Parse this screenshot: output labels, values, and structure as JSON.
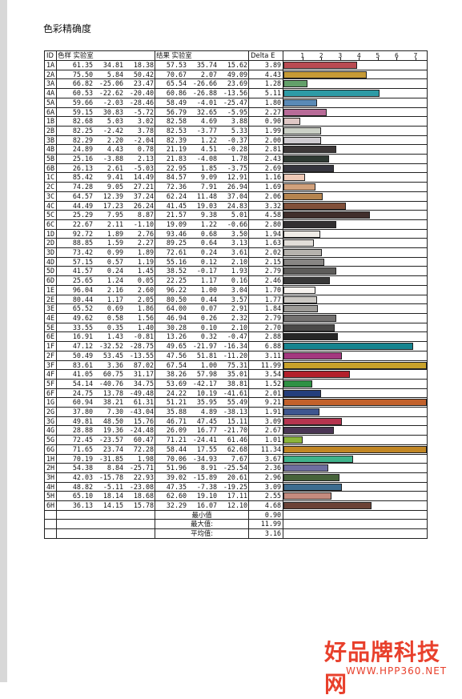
{
  "page_title": "色彩精确度",
  "headers": {
    "id": "ID",
    "sample": "色样 实验室",
    "result": "结果 实验室",
    "delta": "Delta E"
  },
  "scale": [
    "1",
    "2",
    "3",
    "4",
    "5",
    "6",
    "7"
  ],
  "scale_max": 7.6,
  "rows": [
    {
      "id": "1A",
      "s": [
        "61.35",
        "34.81",
        "18.38"
      ],
      "r": [
        "57.53",
        "35.74",
        "15.62"
      ],
      "d": "3.89",
      "de": 3.89,
      "color": "#b94b52"
    },
    {
      "id": "2A",
      "s": [
        "75.50",
        "5.84",
        "50.42"
      ],
      "r": [
        "70.67",
        "2.07",
        "49.09"
      ],
      "d": "4.43",
      "de": 4.43,
      "color": "#c69a35"
    },
    {
      "id": "3A",
      "s": [
        "66.82",
        "-25.06",
        "23.47"
      ],
      "r": [
        "65.54",
        "-26.66",
        "23.69"
      ],
      "d": "1.28",
      "de": 1.28,
      "color": "#63a06a"
    },
    {
      "id": "4A",
      "s": [
        "60.53",
        "-22.62",
        "-20.40"
      ],
      "r": [
        "60.86",
        "-26.88",
        "-13.56"
      ],
      "d": "5.11",
      "de": 5.11,
      "color": "#2d9ba6"
    },
    {
      "id": "5A",
      "s": [
        "59.66",
        "-2.03",
        "-28.46"
      ],
      "r": [
        "58.49",
        "-4.01",
        "-25.47"
      ],
      "d": "1.80",
      "de": 1.8,
      "color": "#5a8ab6"
    },
    {
      "id": "6A",
      "s": [
        "59.15",
        "30.83",
        "-5.72"
      ],
      "r": [
        "56.79",
        "32.65",
        "-5.95"
      ],
      "d": "2.27",
      "de": 2.27,
      "color": "#b86b98"
    },
    {
      "id": "1B",
      "s": [
        "82.68",
        "5.03",
        "3.02"
      ],
      "r": [
        "82.58",
        "4.69",
        "3.88"
      ],
      "d": "0.90",
      "de": 0.9,
      "color": "#dfc7c5"
    },
    {
      "id": "2B",
      "s": [
        "82.25",
        "-2.42",
        "3.78"
      ],
      "r": [
        "82.53",
        "-3.77",
        "5.33"
      ],
      "d": "1.99",
      "de": 1.99,
      "color": "#cbd0c6"
    },
    {
      "id": "3B",
      "s": [
        "82.29",
        "2.20",
        "-2.04"
      ],
      "r": [
        "82.39",
        "1.22",
        "-0.37"
      ],
      "d": "2.00",
      "de": 2.0,
      "color": "#cfcbd0"
    },
    {
      "id": "4B",
      "s": [
        "24.89",
        "4.43",
        "0.78"
      ],
      "r": [
        "21.19",
        "4.51",
        "-0.28"
      ],
      "d": "2.81",
      "de": 2.81,
      "color": "#3d3838"
    },
    {
      "id": "5B",
      "s": [
        "25.16",
        "-3.88",
        "2.13"
      ],
      "r": [
        "21.83",
        "-4.08",
        "1.78"
      ],
      "d": "2.43",
      "de": 2.43,
      "color": "#2f3a33"
    },
    {
      "id": "6B",
      "s": [
        "26.13",
        "2.61",
        "-5.03"
      ],
      "r": [
        "22.95",
        "1.85",
        "-3.75"
      ],
      "d": "2.69",
      "de": 2.69,
      "color": "#36363f"
    },
    {
      "id": "1C",
      "s": [
        "85.42",
        "9.41",
        "14.49"
      ],
      "r": [
        "84.57",
        "9.09",
        "12.91"
      ],
      "d": "1.16",
      "de": 1.16,
      "color": "#eec9b7"
    },
    {
      "id": "2C",
      "s": [
        "74.28",
        "9.05",
        "27.21"
      ],
      "r": [
        "72.36",
        "7.91",
        "26.94"
      ],
      "d": "1.69",
      "de": 1.69,
      "color": "#d1a17c"
    },
    {
      "id": "3C",
      "s": [
        "64.57",
        "12.39",
        "37.24"
      ],
      "r": [
        "62.24",
        "11.48",
        "37.04"
      ],
      "d": "2.06",
      "de": 2.06,
      "color": "#b5844f"
    },
    {
      "id": "4C",
      "s": [
        "44.49",
        "17.23",
        "26.24"
      ],
      "r": [
        "41.45",
        "19.03",
        "24.83"
      ],
      "d": "3.32",
      "de": 3.32,
      "color": "#81503a"
    },
    {
      "id": "5C",
      "s": [
        "25.29",
        "7.95",
        "8.87"
      ],
      "r": [
        "21.57",
        "9.38",
        "5.01"
      ],
      "d": "4.58",
      "de": 4.58,
      "color": "#402f2c"
    },
    {
      "id": "6C",
      "s": [
        "22.67",
        "2.11",
        "-1.10"
      ],
      "r": [
        "19.09",
        "1.22",
        "-0.66"
      ],
      "d": "2.80",
      "de": 2.8,
      "color": "#323031"
    },
    {
      "id": "1D",
      "s": [
        "92.72",
        "1.89",
        "2.76"
      ],
      "r": [
        "93.46",
        "0.68",
        "3.50"
      ],
      "d": "1.94",
      "de": 1.94,
      "color": "#eeebe6"
    },
    {
      "id": "2D",
      "s": [
        "88.85",
        "1.59",
        "2.27"
      ],
      "r": [
        "89.25",
        "0.64",
        "3.13"
      ],
      "d": "1.63",
      "de": 1.63,
      "color": "#e2ded9"
    },
    {
      "id": "3D",
      "s": [
        "73.42",
        "0.99",
        "1.89"
      ],
      "r": [
        "72.61",
        "0.24",
        "3.61"
      ],
      "d": "2.02",
      "de": 2.02,
      "color": "#b5b2ad"
    },
    {
      "id": "4D",
      "s": [
        "57.15",
        "0.57",
        "1.19"
      ],
      "r": [
        "55.16",
        "0.12",
        "2.10"
      ],
      "d": "2.15",
      "de": 2.15,
      "color": "#888684"
    },
    {
      "id": "5D",
      "s": [
        "41.57",
        "0.24",
        "1.45"
      ],
      "r": [
        "38.52",
        "-0.17",
        "1.93"
      ],
      "d": "2.79",
      "de": 2.79,
      "color": "#5d5c5a"
    },
    {
      "id": "6D",
      "s": [
        "25.65",
        "1.24",
        "0.05"
      ],
      "r": [
        "22.25",
        "1.17",
        "0.16"
      ],
      "d": "2.46",
      "de": 2.46,
      "color": "#383838"
    },
    {
      "id": "1E",
      "s": [
        "96.04",
        "2.16",
        "2.60"
      ],
      "r": [
        "96.22",
        "1.00",
        "3.04"
      ],
      "d": "1.70",
      "de": 1.7,
      "color": "#f7f3ef"
    },
    {
      "id": "2E",
      "s": [
        "80.44",
        "1.17",
        "2.05"
      ],
      "r": [
        "80.50",
        "0.44",
        "3.57"
      ],
      "d": "1.77",
      "de": 1.77,
      "color": "#cbc8c3"
    },
    {
      "id": "3E",
      "s": [
        "65.52",
        "0.69",
        "1.86"
      ],
      "r": [
        "64.00",
        "0.07",
        "2.91"
      ],
      "d": "1.84",
      "de": 1.84,
      "color": "#9e9c98"
    },
    {
      "id": "4E",
      "s": [
        "49.62",
        "0.58",
        "1.56"
      ],
      "r": [
        "46.94",
        "0.26",
        "2.32"
      ],
      "d": "2.79",
      "de": 2.79,
      "color": "#737170"
    },
    {
      "id": "5E",
      "s": [
        "33.55",
        "0.35",
        "1.40"
      ],
      "r": [
        "30.28",
        "0.10",
        "2.10"
      ],
      "d": "2.70",
      "de": 2.7,
      "color": "#4a4948"
    },
    {
      "id": "6E",
      "s": [
        "16.91",
        "1.43",
        "-0.81"
      ],
      "r": [
        "13.26",
        "0.32",
        "-0.47"
      ],
      "d": "2.88",
      "de": 2.88,
      "color": "#262626"
    },
    {
      "id": "1F",
      "s": [
        "47.12",
        "-32.52",
        "-28.75"
      ],
      "r": [
        "49.65",
        "-21.97",
        "-16.34"
      ],
      "d": "6.88",
      "de": 6.88,
      "color": "#16848f"
    },
    {
      "id": "2F",
      "s": [
        "50.49",
        "53.45",
        "-13.55"
      ],
      "r": [
        "47.56",
        "51.81",
        "-11.20"
      ],
      "d": "3.11",
      "de": 3.11,
      "color": "#a3387f"
    },
    {
      "id": "3F",
      "s": [
        "83.61",
        "3.36",
        "87.02"
      ],
      "r": [
        "67.54",
        "1.00",
        "75.31"
      ],
      "d": "11.99",
      "de": 11.99,
      "color": "#c8a12a"
    },
    {
      "id": "4F",
      "s": [
        "41.05",
        "60.75",
        "31.17"
      ],
      "r": [
        "38.26",
        "57.98",
        "35.01"
      ],
      "d": "3.54",
      "de": 3.54,
      "color": "#b3202b"
    },
    {
      "id": "5F",
      "s": [
        "54.14",
        "-40.76",
        "34.75"
      ],
      "r": [
        "53.69",
        "-42.17",
        "38.81"
      ],
      "d": "1.52",
      "de": 1.52,
      "color": "#2f9144"
    },
    {
      "id": "6F",
      "s": [
        "24.75",
        "13.78",
        "-49.48"
      ],
      "r": [
        "24.22",
        "10.19",
        "-41.61"
      ],
      "d": "2.01",
      "de": 2.01,
      "color": "#233e7c"
    },
    {
      "id": "1G",
      "s": [
        "60.94",
        "38.21",
        "61.31"
      ],
      "r": [
        "51.21",
        "35.95",
        "55.49"
      ],
      "d": "9.21",
      "de": 9.21,
      "color": "#c2612b"
    },
    {
      "id": "2G",
      "s": [
        "37.80",
        "7.30",
        "-43.04"
      ],
      "r": [
        "35.88",
        "4.89",
        "-38.13"
      ],
      "d": "1.91",
      "de": 1.91,
      "color": "#3f568f"
    },
    {
      "id": "3G",
      "s": [
        "49.81",
        "48.50",
        "15.76"
      ],
      "r": [
        "46.71",
        "47.45",
        "15.11"
      ],
      "d": "3.09",
      "de": 3.09,
      "color": "#b5344f"
    },
    {
      "id": "4G",
      "s": [
        "28.88",
        "19.36",
        "-24.48"
      ],
      "r": [
        "26.09",
        "16.77",
        "-21.70"
      ],
      "d": "2.67",
      "de": 2.67,
      "color": "#4a3554"
    },
    {
      "id": "5G",
      "s": [
        "72.45",
        "-23.57",
        "60.47"
      ],
      "r": [
        "71.21",
        "-24.41",
        "61.46"
      ],
      "d": "1.01",
      "de": 1.01,
      "color": "#8bb43a"
    },
    {
      "id": "6G",
      "s": [
        "71.65",
        "23.74",
        "72.28"
      ],
      "r": [
        "58.44",
        "17.55",
        "62.68"
      ],
      "d": "11.34",
      "de": 11.34,
      "color": "#c18624"
    },
    {
      "id": "1H",
      "s": [
        "70.19",
        "-31.85",
        "1.98"
      ],
      "r": [
        "70.06",
        "-34.93",
        "7.67"
      ],
      "d": "3.67",
      "de": 3.67,
      "color": "#3fb28b"
    },
    {
      "id": "2H",
      "s": [
        "54.38",
        "8.84",
        "-25.71"
      ],
      "r": [
        "51.96",
        "8.91",
        "-25.54"
      ],
      "d": "2.36",
      "de": 2.36,
      "color": "#6e6ea0"
    },
    {
      "id": "3H",
      "s": [
        "42.03",
        "-15.78",
        "22.93"
      ],
      "r": [
        "39.02",
        "-15.89",
        "20.61"
      ],
      "d": "2.96",
      "de": 2.96,
      "color": "#46633a"
    },
    {
      "id": "4H",
      "s": [
        "48.82",
        "-5.11",
        "-23.08"
      ],
      "r": [
        "47.35",
        "-7.38",
        "-19.25"
      ],
      "d": "3.09",
      "de": 3.09,
      "color": "#3d6c8f"
    },
    {
      "id": "5H",
      "s": [
        "65.10",
        "18.14",
        "18.68"
      ],
      "r": [
        "62.60",
        "19.10",
        "17.11"
      ],
      "d": "2.55",
      "de": 2.55,
      "color": "#c48b7e"
    },
    {
      "id": "6H",
      "s": [
        "36.13",
        "14.15",
        "15.78"
      ],
      "r": [
        "32.29",
        "16.07",
        "12.10"
      ],
      "d": "4.68",
      "de": 4.68,
      "color": "#6b4236"
    }
  ],
  "summary": [
    {
      "label": "最小值",
      "value": "0.90"
    },
    {
      "label": "最大值:",
      "value": "11.99"
    },
    {
      "label": "平均值:",
      "value": "3.16"
    }
  ],
  "logo": {
    "text": "好品牌科技网",
    "url": "WWW.HPP360.NET",
    "color": "#e8402c"
  }
}
